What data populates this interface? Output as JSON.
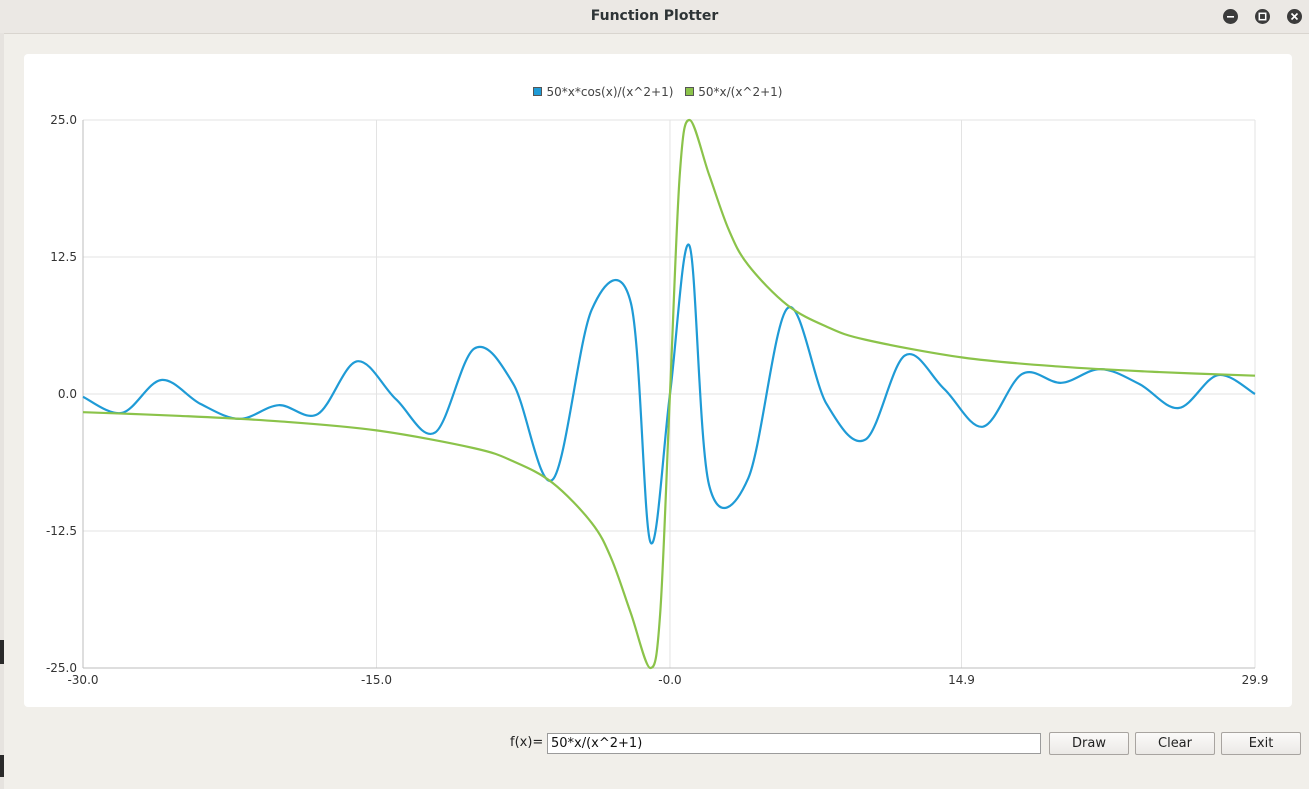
{
  "window": {
    "title": "Function Plotter",
    "controls": [
      "minimize-icon",
      "maximize-icon",
      "close-icon"
    ]
  },
  "input": {
    "label": "f(x)=",
    "value": "50*x/(x^2+1)"
  },
  "buttons": {
    "draw": "Draw",
    "clear": "Clear",
    "exit": "Exit"
  },
  "colors": {
    "series1": "#1f9bd6",
    "series2": "#8bc34a"
  },
  "chart_data": {
    "type": "line",
    "title": "",
    "xlabel": "",
    "ylabel": "",
    "xlim": [
      -30.0,
      29.9
    ],
    "ylim": [
      -25.0,
      25.0
    ],
    "x_ticks": [
      "-30.0",
      "-15.0",
      "-0.0",
      "14.9",
      "29.9"
    ],
    "y_ticks": [
      "25.0",
      "12.5",
      "0.0",
      "-12.5",
      "-25.0"
    ],
    "grid": true,
    "legend": "top-center",
    "series": [
      {
        "name": "50*x*cos(x)/(x^2+1)",
        "color": "#1f9bd6",
        "points": [
          [
            -30.0,
            -0.26
          ],
          [
            -28.0,
            -1.72
          ],
          [
            -26.0,
            1.28
          ],
          [
            -24.0,
            -0.9
          ],
          [
            -22.0,
            -2.27
          ],
          [
            -20.0,
            -1.02
          ],
          [
            -18.0,
            -1.83
          ],
          [
            -16.0,
            2.98
          ],
          [
            -14.0,
            -0.49
          ],
          [
            -12.0,
            -3.51
          ],
          [
            -10.0,
            4.15
          ],
          [
            -8.0,
            0.9
          ],
          [
            -6.0,
            -7.82
          ],
          [
            -4.0,
            7.69
          ],
          [
            -2.0,
            8.32
          ],
          [
            -1.0,
            -13.51
          ],
          [
            0.0,
            0.0
          ],
          [
            1.0,
            13.51
          ],
          [
            2.0,
            -8.32
          ],
          [
            4.0,
            -7.69
          ],
          [
            6.0,
            7.82
          ],
          [
            8.0,
            -0.9
          ],
          [
            10.0,
            -4.15
          ],
          [
            12.0,
            3.51
          ],
          [
            14.0,
            0.49
          ],
          [
            16.0,
            -2.98
          ],
          [
            18.0,
            1.83
          ],
          [
            20.0,
            1.02
          ],
          [
            22.0,
            2.27
          ],
          [
            24.0,
            0.9
          ],
          [
            26.0,
            -1.28
          ],
          [
            28.0,
            1.72
          ],
          [
            29.9,
            0.0
          ]
        ]
      },
      {
        "name": "50*x/(x^2+1)",
        "color": "#8bc34a",
        "points": [
          [
            -30.0,
            -1.66
          ],
          [
            -25.0,
            -2.0
          ],
          [
            -20.0,
            -2.49
          ],
          [
            -15.0,
            -3.32
          ],
          [
            -10.0,
            -4.95
          ],
          [
            -8.0,
            -6.15
          ],
          [
            -6.0,
            -8.11
          ],
          [
            -4.0,
            -11.76
          ],
          [
            -3.0,
            -15.0
          ],
          [
            -2.0,
            -20.0
          ],
          [
            -1.0,
            -25.0
          ],
          [
            -0.5,
            -20.0
          ],
          [
            0.0,
            0.0
          ],
          [
            0.5,
            20.0
          ],
          [
            1.0,
            25.0
          ],
          [
            2.0,
            20.0
          ],
          [
            3.0,
            15.0
          ],
          [
            4.0,
            11.76
          ],
          [
            6.0,
            8.11
          ],
          [
            8.0,
            6.15
          ],
          [
            10.0,
            4.95
          ],
          [
            15.0,
            3.32
          ],
          [
            20.0,
            2.49
          ],
          [
            25.0,
            2.0
          ],
          [
            29.9,
            1.67
          ]
        ]
      }
    ]
  }
}
